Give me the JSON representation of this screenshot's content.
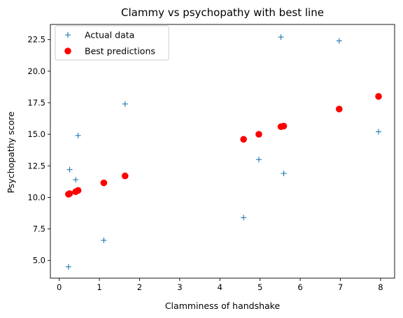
{
  "chart_data": {
    "type": "scatter",
    "title": "Clammy vs psychopathy with best line",
    "xlabel": "Clamminess of handshake",
    "ylabel": "Psychopathy score",
    "xlim": [
      -0.22,
      8.35
    ],
    "ylim": [
      3.6,
      23.7
    ],
    "xticks": [
      0,
      1,
      2,
      3,
      4,
      5,
      6,
      7,
      8
    ],
    "xtick_labels": [
      "0",
      "1",
      "2",
      "3",
      "4",
      "5",
      "6",
      "7",
      "8"
    ],
    "yticks": [
      5.0,
      7.5,
      10.0,
      12.5,
      15.0,
      17.5,
      20.0,
      22.5
    ],
    "ytick_labels": [
      "5.0",
      "7.5",
      "10.0",
      "12.5",
      "15.0",
      "17.5",
      "20.0",
      "22.5"
    ],
    "grid": false,
    "legend_position": "top-left",
    "series": [
      {
        "name": "Actual data",
        "marker": "plus",
        "color": "#1f77b4",
        "x": [
          0.23,
          0.26,
          0.41,
          0.47,
          1.11,
          1.64,
          4.59,
          4.97,
          5.52,
          5.59,
          6.97,
          7.95
        ],
        "y": [
          4.5,
          12.2,
          11.4,
          14.9,
          6.6,
          17.4,
          8.4,
          13.0,
          22.7,
          11.9,
          22.4,
          15.2
        ]
      },
      {
        "name": "Best predictions",
        "marker": "circle",
        "color": "#ff0000",
        "x": [
          0.23,
          0.26,
          0.41,
          0.47,
          1.11,
          1.64,
          4.59,
          4.97,
          5.52,
          5.59,
          6.97,
          7.95
        ],
        "y": [
          10.25,
          10.3,
          10.45,
          10.55,
          11.15,
          11.7,
          14.6,
          15.0,
          15.6,
          15.65,
          17.0,
          18.0
        ]
      }
    ]
  }
}
